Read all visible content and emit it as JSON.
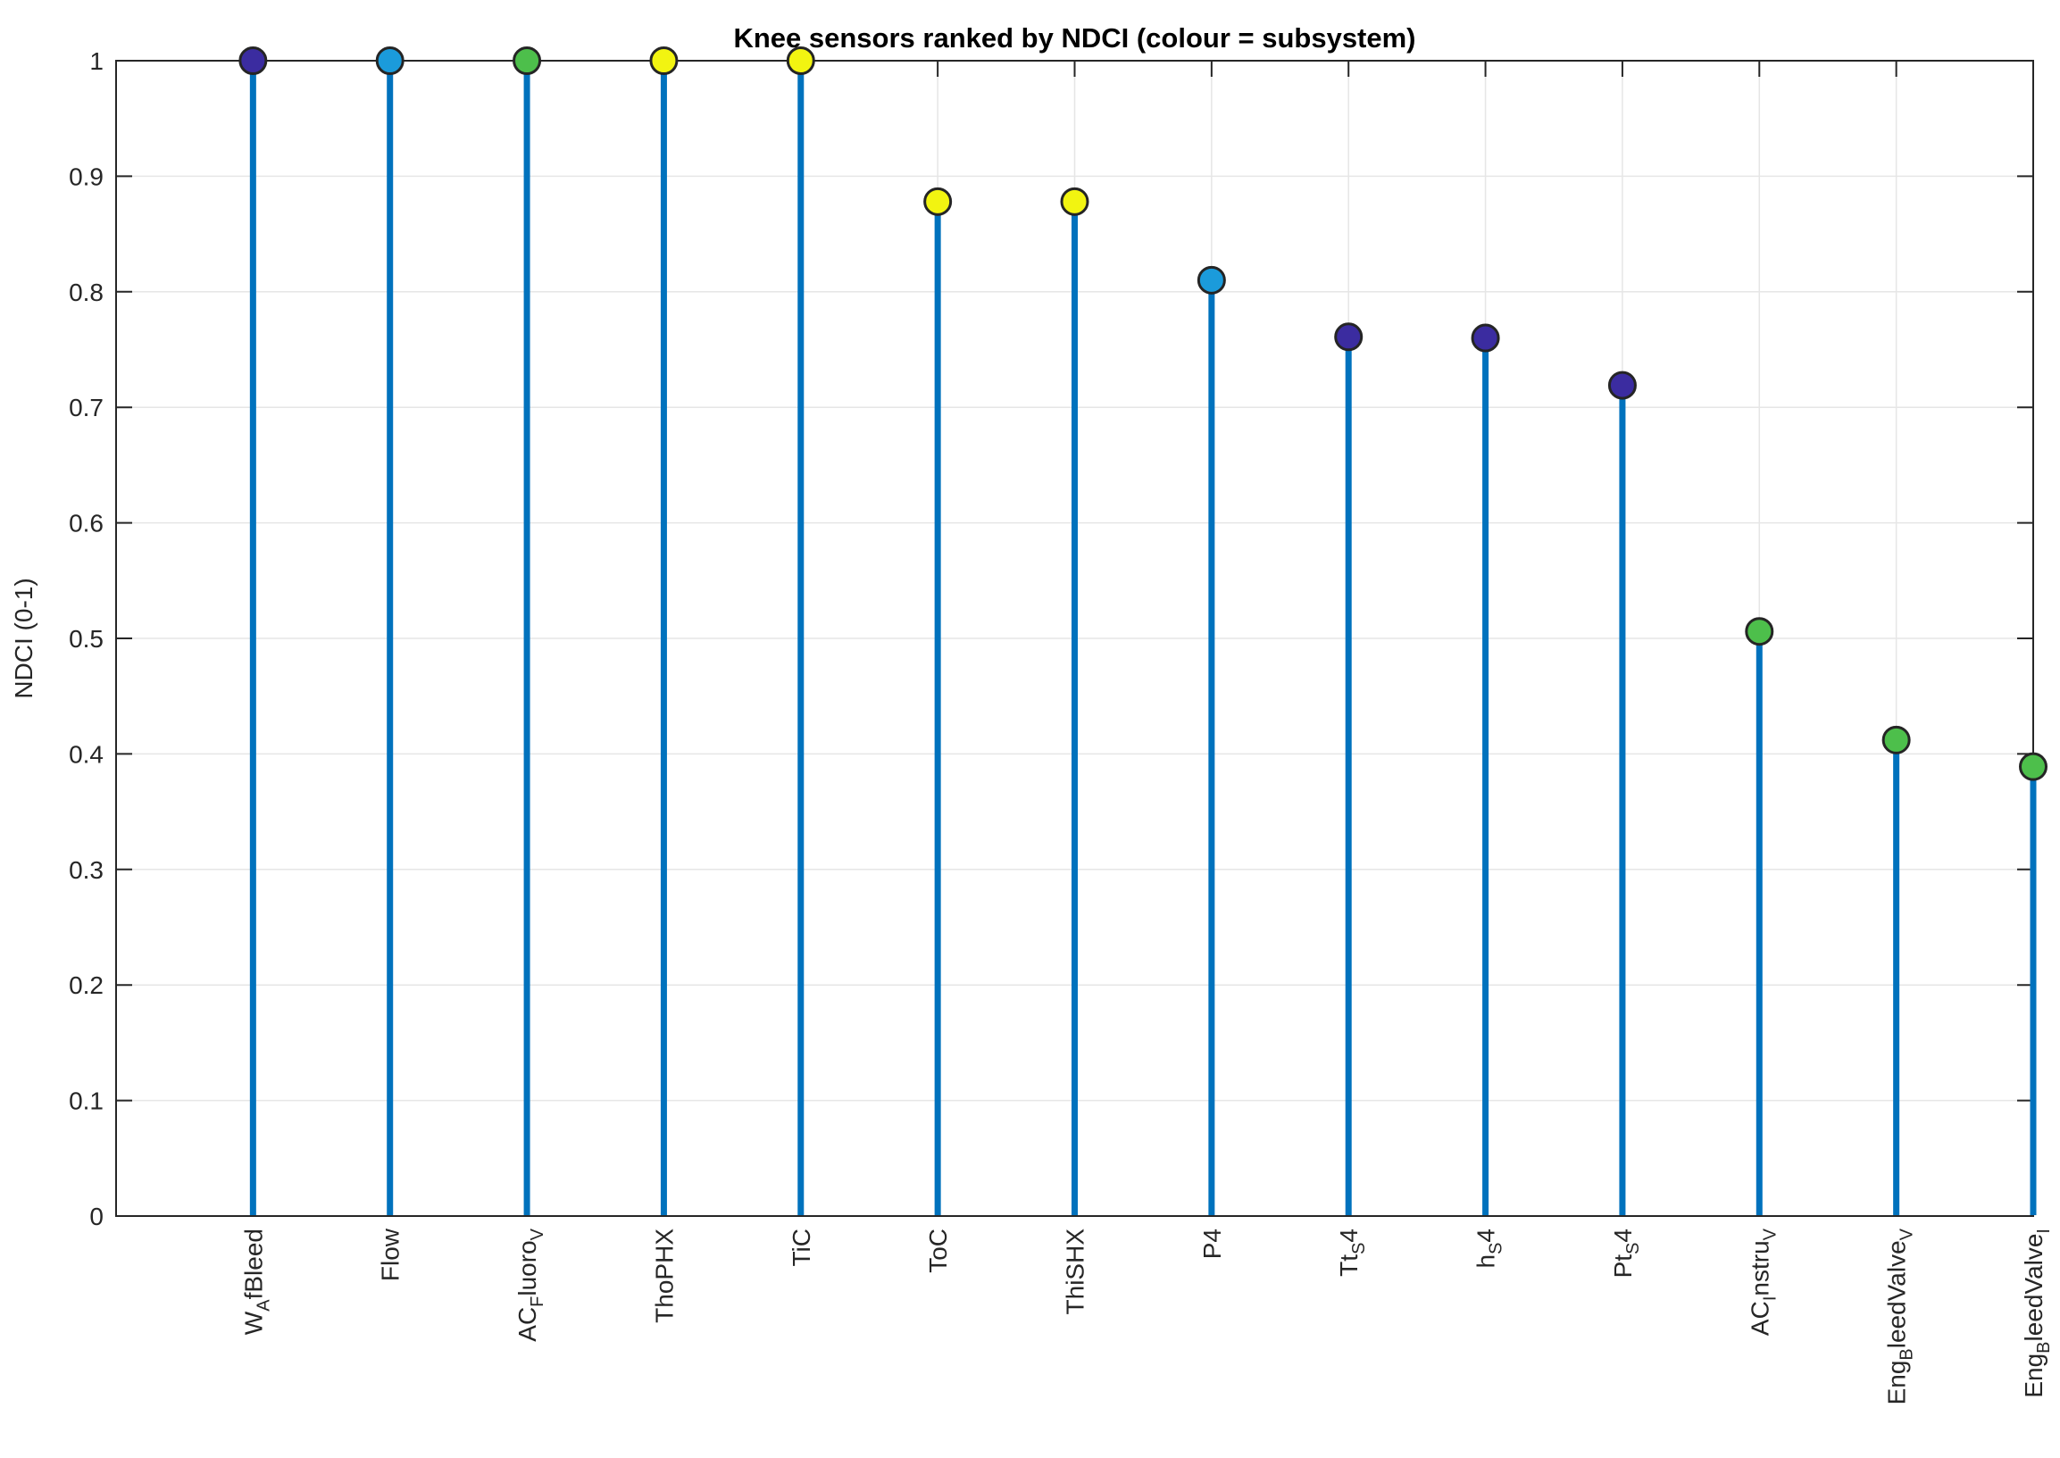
{
  "figure": {
    "background": "#FFFFFF"
  },
  "chart_data": {
    "type": "stem",
    "title": "Knee sensors ranked by NDCI (colour = subsystem)",
    "ylabel": "NDCI (0-1)",
    "xlabel": "",
    "ylim": [
      0,
      1
    ],
    "grid": true,
    "legend": "none",
    "colors": {
      "stem": "#0072BD",
      "marker_edge": "#252525",
      "grid": "#E6E6E6",
      "axis": "#262626",
      "background": "#FFFFFF",
      "subsystem": {
        "indigo": "#3B2CA0",
        "blue": "#1B9BDB",
        "green": "#4DBF4B",
        "yellow": "#F2F411"
      }
    },
    "yticks": [
      {
        "v": 0.0,
        "label": "0"
      },
      {
        "v": 0.1,
        "label": "0.1"
      },
      {
        "v": 0.2,
        "label": "0.2"
      },
      {
        "v": 0.3,
        "label": "0.3"
      },
      {
        "v": 0.4,
        "label": "0.4"
      },
      {
        "v": 0.5,
        "label": "0.5"
      },
      {
        "v": 0.6,
        "label": "0.6"
      },
      {
        "v": 0.7,
        "label": "0.7"
      },
      {
        "v": 0.8,
        "label": "0.8"
      },
      {
        "v": 0.9,
        "label": "0.9"
      },
      {
        "v": 1.0,
        "label": "1"
      }
    ],
    "categories_plain": [
      "W_AfBleed",
      "Flow",
      "AC_Fluoro_V",
      "ThoPHX",
      "TiC",
      "ToC",
      "ThiSHX",
      "P4",
      "Tt_S4",
      "h_S4",
      "Pt_S4",
      "AC_Instru_V",
      "Eng_BleedValve_V",
      "Eng_BleedValve_I"
    ],
    "points": [
      {
        "value": 1.0,
        "subsystem": "indigo",
        "label_segments": [
          {
            "t": "W",
            "sub": false
          },
          {
            "t": "A",
            "sub": true
          },
          {
            "t": "fBleed",
            "sub": false
          }
        ]
      },
      {
        "value": 1.0,
        "subsystem": "blue",
        "label_segments": [
          {
            "t": "Flow",
            "sub": false
          }
        ]
      },
      {
        "value": 1.0,
        "subsystem": "green",
        "label_segments": [
          {
            "t": "AC",
            "sub": false
          },
          {
            "t": "F",
            "sub": true
          },
          {
            "t": "luoro",
            "sub": false
          },
          {
            "t": "V",
            "sub": true
          }
        ]
      },
      {
        "value": 1.0,
        "subsystem": "yellow",
        "label_segments": [
          {
            "t": "ThoPHX",
            "sub": false
          }
        ]
      },
      {
        "value": 1.0,
        "subsystem": "yellow",
        "label_segments": [
          {
            "t": "TiC",
            "sub": false
          }
        ]
      },
      {
        "value": 0.878,
        "subsystem": "yellow",
        "label_segments": [
          {
            "t": "ToC",
            "sub": false
          }
        ]
      },
      {
        "value": 0.878,
        "subsystem": "yellow",
        "label_segments": [
          {
            "t": "ThiSHX",
            "sub": false
          }
        ]
      },
      {
        "value": 0.81,
        "subsystem": "blue",
        "label_segments": [
          {
            "t": "P4",
            "sub": false
          }
        ]
      },
      {
        "value": 0.761,
        "subsystem": "indigo",
        "label_segments": [
          {
            "t": "Tt",
            "sub": false
          },
          {
            "t": "S",
            "sub": true
          },
          {
            "t": "4",
            "sub": false
          }
        ]
      },
      {
        "value": 0.76,
        "subsystem": "indigo",
        "label_segments": [
          {
            "t": "h",
            "sub": false
          },
          {
            "t": "S",
            "sub": true
          },
          {
            "t": "4",
            "sub": false
          }
        ]
      },
      {
        "value": 0.719,
        "subsystem": "indigo",
        "label_segments": [
          {
            "t": "Pt",
            "sub": false
          },
          {
            "t": "S",
            "sub": true
          },
          {
            "t": "4",
            "sub": false
          }
        ]
      },
      {
        "value": 0.506,
        "subsystem": "green",
        "label_segments": [
          {
            "t": "AC",
            "sub": false
          },
          {
            "t": "I",
            "sub": true
          },
          {
            "t": "nstru",
            "sub": false
          },
          {
            "t": "V",
            "sub": true
          }
        ]
      },
      {
        "value": 0.412,
        "subsystem": "green",
        "label_segments": [
          {
            "t": "Eng",
            "sub": false
          },
          {
            "t": "B",
            "sub": true
          },
          {
            "t": "leedValve",
            "sub": false
          },
          {
            "t": "V",
            "sub": true
          }
        ]
      },
      {
        "value": 0.389,
        "subsystem": "green",
        "label_segments": [
          {
            "t": "Eng",
            "sub": false
          },
          {
            "t": "B",
            "sub": true
          },
          {
            "t": "leedValve",
            "sub": false
          },
          {
            "t": "I",
            "sub": true
          }
        ]
      }
    ]
  }
}
